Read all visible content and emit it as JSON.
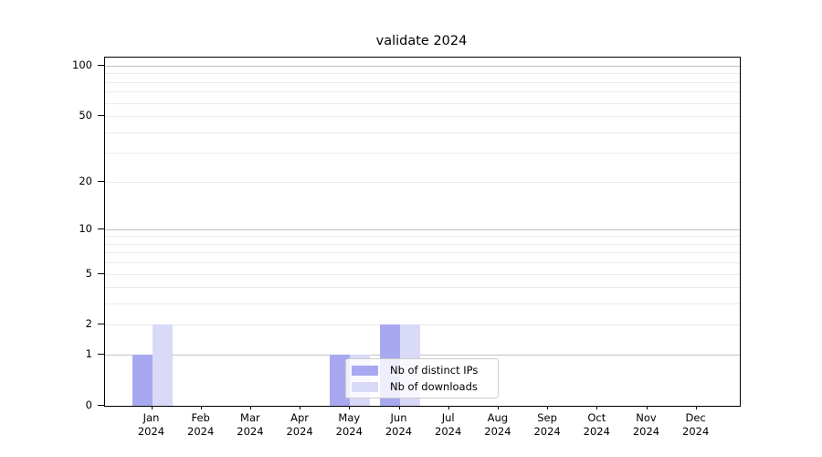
{
  "chart_data": {
    "type": "bar",
    "title": "validate 2024",
    "categories": [
      "Jan",
      "Feb",
      "Mar",
      "Apr",
      "May",
      "Jun",
      "Jul",
      "Aug",
      "Sep",
      "Oct",
      "Nov",
      "Dec"
    ],
    "category_year_label": "2024",
    "series": [
      {
        "name": "Nb of distinct IPs",
        "color": "#a8a8f0",
        "values": [
          1,
          0,
          0,
          0,
          1,
          2,
          0,
          0,
          0,
          0,
          0,
          0
        ]
      },
      {
        "name": "Nb of downloads",
        "color": "#d9d9f8",
        "values": [
          2,
          0,
          0,
          0,
          1,
          2,
          0,
          0,
          0,
          0,
          0,
          0
        ]
      }
    ],
    "xlabel": "",
    "ylabel": "",
    "y_scale": "log1p",
    "ylim": [
      0,
      112
    ],
    "y_ticks_labeled": [
      0,
      1,
      2,
      5,
      10,
      20,
      50,
      100
    ],
    "y_gridlines_major": [
      1,
      10,
      100
    ],
    "y_gridlines_minor": [
      2,
      3,
      4,
      5,
      6,
      7,
      8,
      9,
      20,
      30,
      40,
      50,
      60,
      70,
      80,
      90
    ],
    "grid": "on",
    "legend_position": "lower-center",
    "colors": {
      "major_grid": "#c3c3c3",
      "minor_grid": "#ebebeb",
      "axis": "#000000",
      "legend_border": "#cccccc"
    }
  }
}
